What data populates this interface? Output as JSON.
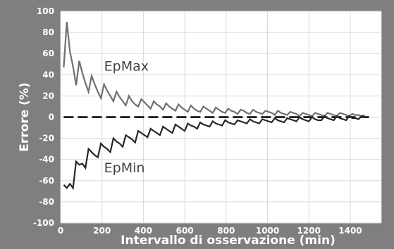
{
  "chart_data": {
    "type": "line",
    "title": "",
    "xlabel": "Intervallo di osservazione (min)",
    "ylabel": "Errore (%)",
    "xlim": [
      0,
      1550
    ],
    "ylim": [
      -100,
      100
    ],
    "xticks": [
      0,
      200,
      400,
      600,
      800,
      1000,
      1200,
      1400
    ],
    "yticks": [
      -100,
      -80,
      -60,
      -40,
      -20,
      0,
      20,
      40,
      60,
      80,
      100
    ],
    "grid": true,
    "legend": "none",
    "annotations": [
      {
        "text": "EpMax",
        "series": "EpMax",
        "x": 210,
        "y": 44
      },
      {
        "text": "EpMin",
        "series": "EpMin",
        "x": 210,
        "y": -52
      }
    ],
    "reference_line": {
      "y": 0,
      "style": "dashed",
      "color": "#000000"
    },
    "series": [
      {
        "name": "EpMax",
        "color": "#6f6f6f",
        "x": [
          15,
          30,
          45,
          60,
          75,
          90,
          105,
          120,
          135,
          150,
          165,
          180,
          195,
          210,
          225,
          240,
          255,
          270,
          285,
          300,
          315,
          330,
          345,
          360,
          375,
          390,
          405,
          420,
          435,
          450,
          465,
          480,
          495,
          510,
          525,
          540,
          555,
          570,
          585,
          600,
          615,
          630,
          645,
          660,
          675,
          690,
          705,
          720,
          735,
          750,
          765,
          780,
          795,
          810,
          825,
          840,
          855,
          870,
          885,
          900,
          915,
          930,
          945,
          960,
          975,
          990,
          1005,
          1020,
          1035,
          1050,
          1065,
          1080,
          1095,
          1110,
          1125,
          1140,
          1155,
          1170,
          1185,
          1200,
          1215,
          1230,
          1245,
          1260,
          1275,
          1290,
          1305,
          1320,
          1335,
          1350,
          1365,
          1380,
          1395,
          1410,
          1425,
          1440,
          1455,
          1470
        ],
        "values": [
          47,
          90,
          62,
          48,
          30,
          53,
          42,
          32,
          24,
          39,
          31,
          24,
          18,
          31,
          25,
          20,
          15,
          24,
          19,
          15,
          11,
          20,
          15,
          12,
          10,
          17,
          14,
          11,
          8,
          15,
          12,
          10,
          7,
          13,
          10,
          8,
          6,
          12,
          9,
          7,
          5,
          11,
          8,
          6,
          5,
          10,
          8,
          6,
          4,
          9,
          7,
          5,
          4,
          8,
          6,
          5,
          3,
          7,
          6,
          4,
          3,
          7,
          5,
          4,
          3,
          6,
          5,
          4,
          2,
          6,
          4,
          3,
          2,
          5,
          4,
          3,
          1,
          4,
          3,
          2,
          1,
          4,
          3,
          2,
          1,
          4,
          3,
          2,
          1,
          4,
          3,
          2,
          1,
          3,
          2,
          2,
          1,
          2
        ]
      },
      {
        "name": "EpMin",
        "color": "#262626",
        "x": [
          15,
          30,
          45,
          60,
          75,
          90,
          105,
          120,
          135,
          150,
          165,
          180,
          195,
          210,
          225,
          240,
          255,
          270,
          285,
          300,
          315,
          330,
          345,
          360,
          375,
          390,
          405,
          420,
          435,
          450,
          465,
          480,
          495,
          510,
          525,
          540,
          555,
          570,
          585,
          600,
          615,
          630,
          645,
          660,
          675,
          690,
          705,
          720,
          735,
          750,
          765,
          780,
          795,
          810,
          825,
          840,
          855,
          870,
          885,
          900,
          915,
          930,
          945,
          960,
          975,
          990,
          1005,
          1020,
          1035,
          1050,
          1065,
          1080,
          1095,
          1110,
          1125,
          1140,
          1155,
          1170,
          1185,
          1200,
          1215,
          1230,
          1245,
          1260,
          1275,
          1290,
          1305,
          1320,
          1335,
          1350,
          1365,
          1380,
          1395,
          1410,
          1425,
          1440,
          1455,
          1470
        ],
        "values": [
          -64,
          -67,
          -63,
          -67,
          -42,
          -45,
          -44,
          -48,
          -30,
          -33,
          -36,
          -38,
          -25,
          -28,
          -30,
          -33,
          -20,
          -23,
          -25,
          -28,
          -17,
          -19,
          -21,
          -24,
          -13,
          -15,
          -17,
          -19,
          -11,
          -13,
          -15,
          -17,
          -9,
          -11,
          -13,
          -15,
          -7,
          -9,
          -11,
          -13,
          -6,
          -8,
          -9,
          -11,
          -5,
          -7,
          -8,
          -9,
          -4,
          -6,
          -7,
          -8,
          -3,
          -5,
          -6,
          -7,
          -3,
          -4,
          -5,
          -6,
          -2,
          -4,
          -5,
          -6,
          -2,
          -3,
          -4,
          -5,
          -1,
          -3,
          -4,
          -5,
          -1,
          -2,
          -3,
          -4,
          0,
          -2,
          -3,
          -4,
          0,
          -2,
          -3,
          -3,
          1,
          -1,
          -2,
          -3,
          1,
          -1,
          -2,
          -3,
          1,
          -1,
          -1,
          -2,
          1,
          0
        ]
      }
    ]
  }
}
